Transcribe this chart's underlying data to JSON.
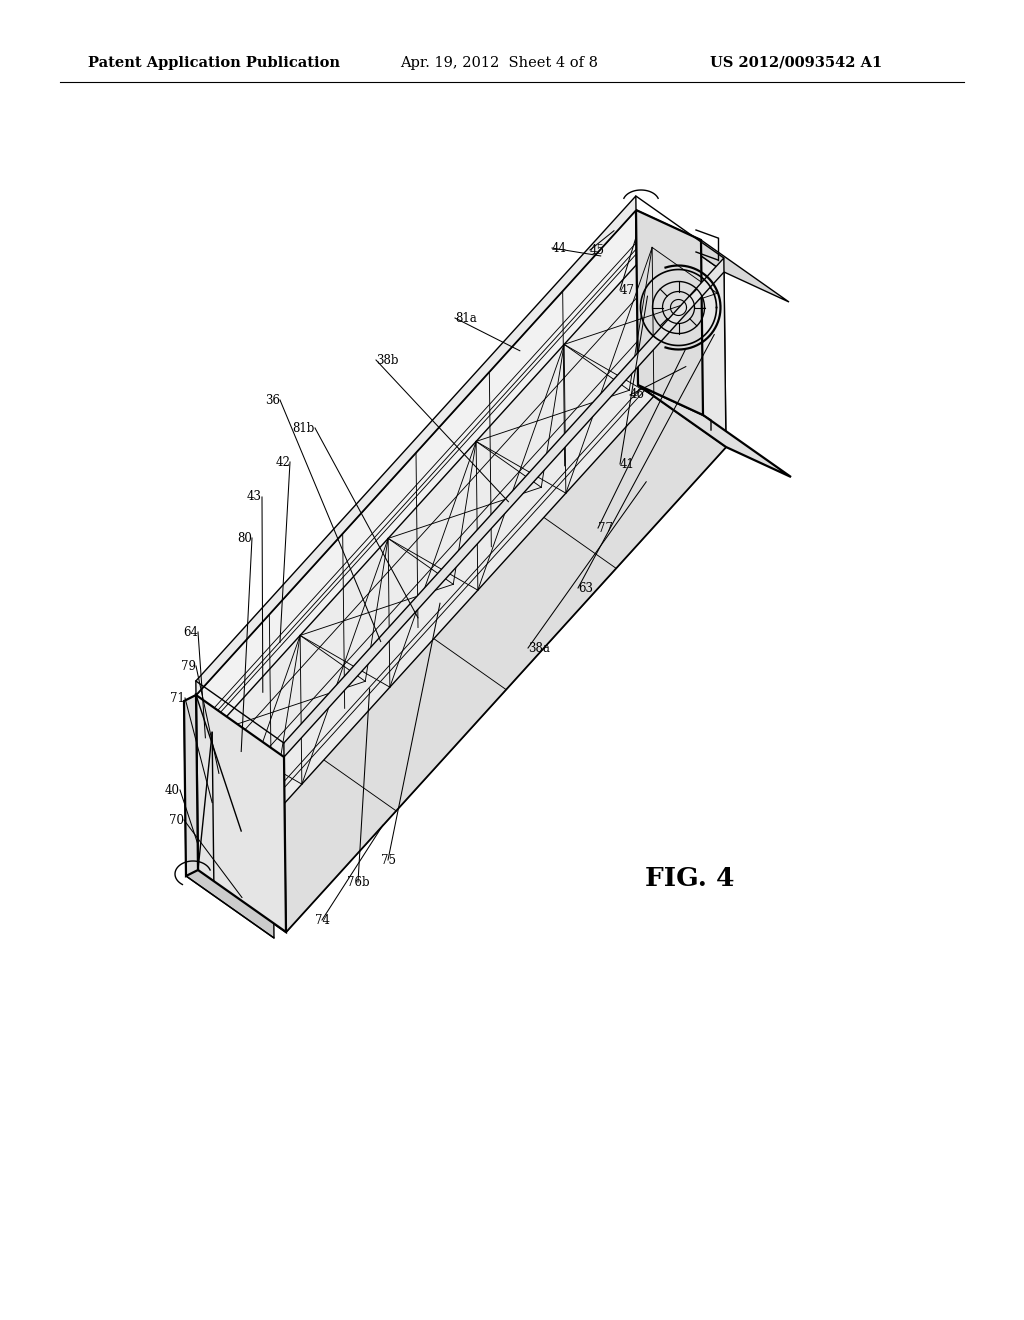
{
  "bg_color": "#ffffff",
  "header_left": "Patent Application Publication",
  "header_center": "Apr. 19, 2012  Sheet 4 of 8",
  "header_right": "US 2012/0093542 A1",
  "fig_label": "FIG. 4",
  "header_font_size": 10.5,
  "fig_label_font_size": 19,
  "lw_main": 1.6,
  "lw_detail": 1.0,
  "lw_thin": 0.65,
  "lw_leader": 0.75,
  "label_fontsize": 8.5,
  "body_color": "#f8f8f8",
  "shadow_color": "#e8e8e8"
}
